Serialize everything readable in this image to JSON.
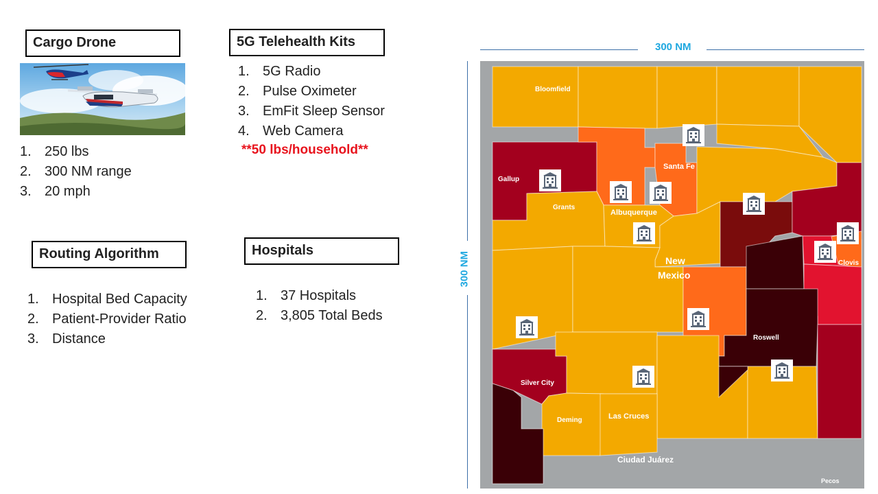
{
  "cargo_drone": {
    "title": "Cargo Drone",
    "specs": [
      "250 lbs",
      "300 NM range",
      "20 mph"
    ]
  },
  "telehealth": {
    "title": "5G Telehealth Kits",
    "items": [
      "5G Radio",
      "Pulse Oximeter",
      "EmFit Sleep Sensor",
      "Web Camera"
    ],
    "note": "**50 lbs/household**"
  },
  "routing": {
    "title": "Routing Algorithm",
    "items": [
      "Hospital Bed Capacity",
      "Patient-Provider Ratio",
      "Distance"
    ]
  },
  "hospitals": {
    "title": "Hospitals",
    "items": [
      "37 Hospitals",
      "3,805 Total Beds"
    ]
  },
  "map": {
    "scale_horizontal": "300 NM",
    "scale_vertical": "300 NM",
    "state_label_1": "New",
    "state_label_2": "Mexico",
    "places": {
      "bloomfield": "Bloomfield",
      "gallup": "Gallup",
      "santa_fe": "Santa Fe",
      "grants": "Grants",
      "albuquerque": "Albuquerque",
      "clovis": "Clovis",
      "roswell": "Roswell",
      "silver_city": "Silver City",
      "deming": "Deming",
      "las_cruces": "Las Cruces",
      "ciudad_juarez": "Ciudad Juárez",
      "pecos": "Pecos"
    },
    "colors": {
      "background": "#a3a6a8",
      "low": "#f3a900",
      "medium": "#ff6a1a",
      "high_red": "#e2132f",
      "dark_red": "#a3001e",
      "maroon": "#7a0c0c",
      "darkest": "#3a0006"
    },
    "icon": "hospital-building-icon"
  }
}
